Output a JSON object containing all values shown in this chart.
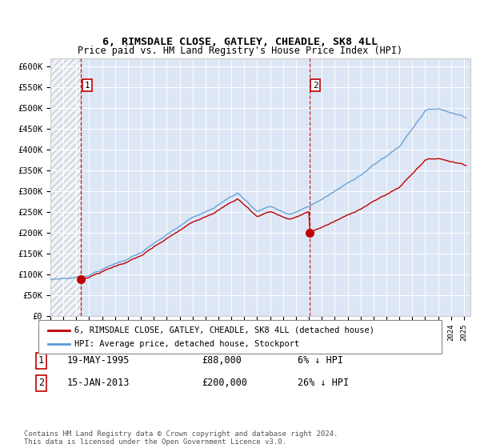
{
  "title": "6, RIMSDALE CLOSE, GATLEY, CHEADLE, SK8 4LL",
  "subtitle": "Price paid vs. HM Land Registry's House Price Index (HPI)",
  "legend_line1": "6, RIMSDALE CLOSE, GATLEY, CHEADLE, SK8 4LL (detached house)",
  "legend_line2": "HPI: Average price, detached house, Stockport",
  "transaction1_date": "19-MAY-1995",
  "transaction1_price": "£88,000",
  "transaction1_hpi": "6% ↓ HPI",
  "transaction1_x": 1995.38,
  "transaction1_y": 88000,
  "transaction2_date": "15-JAN-2013",
  "transaction2_price": "£200,000",
  "transaction2_hpi": "26% ↓ HPI",
  "transaction2_x": 2013.04,
  "transaction2_y": 200000,
  "footer": "Contains HM Land Registry data © Crown copyright and database right 2024.\nThis data is licensed under the Open Government Licence v3.0.",
  "hpi_color": "#5b9bd5",
  "price_color": "#c00000",
  "dot_color": "#c00000",
  "background_color": "#dce6f5",
  "ylim": [
    0,
    620000
  ],
  "xlim_start": 1993,
  "xlim_end": 2025.5,
  "yticks": [
    0,
    50000,
    100000,
    150000,
    200000,
    250000,
    300000,
    350000,
    400000,
    450000,
    500000,
    550000,
    600000
  ],
  "ytick_labels": [
    "£0",
    "£50K",
    "£100K",
    "£150K",
    "£200K",
    "£250K",
    "£300K",
    "£350K",
    "£400K",
    "£450K",
    "£500K",
    "£550K",
    "£600K"
  ]
}
